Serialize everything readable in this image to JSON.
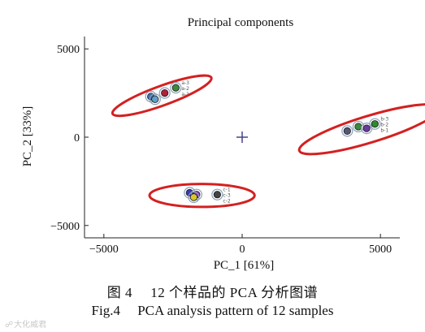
{
  "chart_data": {
    "type": "scatter",
    "title": "Principal components",
    "xlabel": "PC_1 [61%]",
    "ylabel": "PC_2 [33%]",
    "xlim": [
      -5700,
      5700
    ],
    "ylim": [
      -5700,
      5700
    ],
    "xticks": [
      -5000,
      0,
      5000
    ],
    "yticks": [
      5000,
      0,
      -5000
    ],
    "xtick_labels": [
      "−5000",
      "0",
      "5000"
    ],
    "ytick_labels": [
      "5000",
      "0",
      "−5000"
    ],
    "origin_marker": "+",
    "grid": false,
    "groups": [
      {
        "points": [
          {
            "x": -3300,
            "y": 2300,
            "color": "#3a6fb0"
          },
          {
            "x": -2800,
            "y": 2500,
            "color": "#b0203a"
          },
          {
            "x": -2400,
            "y": 2800,
            "color": "#3c8a3c"
          },
          {
            "x": -3150,
            "y": 2150,
            "color": "#5ea0c8"
          }
        ],
        "labels": [
          "a-3",
          "a-2",
          "a-1"
        ],
        "ellipse": {
          "cx": -2900,
          "cy": 2350,
          "rx": 1900,
          "ry": 550,
          "angle_deg": -20
        }
      },
      {
        "points": [
          {
            "x": 3800,
            "y": 350,
            "color": "#555577"
          },
          {
            "x": 4200,
            "y": 600,
            "color": "#3c8a3c"
          },
          {
            "x": 4500,
            "y": 500,
            "color": "#6a3aa0"
          },
          {
            "x": 4800,
            "y": 750,
            "color": "#2d8a2d"
          }
        ],
        "labels": [
          "b-3",
          "b-2",
          "b-1"
        ],
        "ellipse": {
          "cx": 4600,
          "cy": 450,
          "rx": 2650,
          "ry": 750,
          "angle_deg": -17
        }
      },
      {
        "points": [
          {
            "x": -1900,
            "y": -3150,
            "color": "#3a3ab0"
          },
          {
            "x": -1650,
            "y": -3250,
            "color": "#8a3ac0"
          },
          {
            "x": -1750,
            "y": -3400,
            "color": "#d8c82a"
          },
          {
            "x": -900,
            "y": -3250,
            "color": "#444444"
          }
        ],
        "labels": [
          "c-1",
          "c-3",
          "c-2"
        ],
        "ellipse": {
          "cx": -1450,
          "cy": -3300,
          "rx": 1900,
          "ry": 650,
          "angle_deg": 0
        }
      }
    ]
  },
  "caption": {
    "cn": "图 4  12 个样品的 PCA 分析图谱",
    "en": "Fig.4  PCA analysis pattern of 12 samples"
  },
  "watermark": "大化威君",
  "colors": {
    "ellipse": "#d42020",
    "axis": "#222222",
    "origin_marker": "#444488"
  }
}
